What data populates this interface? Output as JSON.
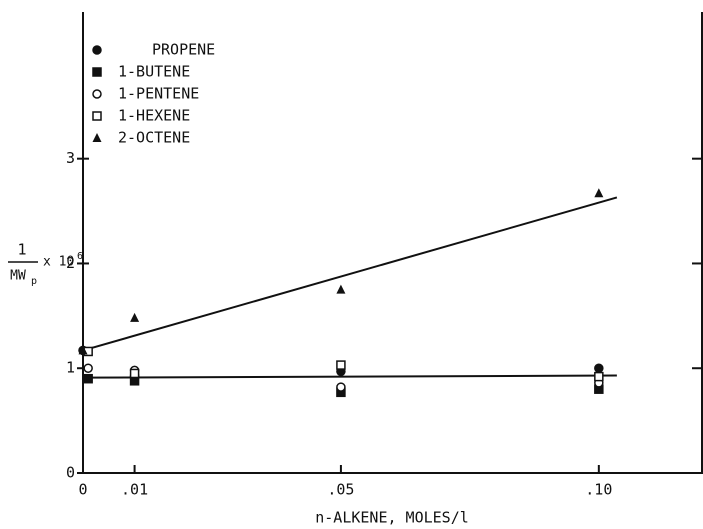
{
  "chart_data": {
    "type": "scatter",
    "x_label": "n-ALKENE, MOLES/l",
    "y_label": {
      "numerator": "1",
      "denominator": "MW",
      "subscript": "p",
      "multiplier": "x 10",
      "exponent": "6"
    },
    "xlim": [
      0,
      0.12
    ],
    "ylim": [
      0,
      4.4
    ],
    "xticks": [
      {
        "value": 0,
        "label": "0"
      },
      {
        "value": 0.01,
        "label": ".01"
      },
      {
        "value": 0.05,
        "label": ".05"
      },
      {
        "value": 0.1,
        "label": ".10"
      }
    ],
    "yticks": [
      0,
      1,
      2,
      3
    ],
    "series": [
      {
        "name": "PROPENE",
        "marker": "circle-filled",
        "x": [
          0,
          0.01,
          0.05,
          0.1
        ],
        "values": [
          1.17,
          0.93,
          0.97,
          1.0
        ]
      },
      {
        "name": "1-BUTENE",
        "marker": "square-filled",
        "x": [
          0.001,
          0.01,
          0.05,
          0.1
        ],
        "values": [
          0.9,
          0.88,
          0.77,
          0.8
        ]
      },
      {
        "name": "1-PENTENE",
        "marker": "circle-open",
        "x": [
          0.001,
          0.01,
          0.05,
          0.1
        ],
        "values": [
          1.0,
          0.98,
          0.82,
          0.86
        ]
      },
      {
        "name": "1-HEXENE",
        "marker": "square-open",
        "x": [
          0.001,
          0.01,
          0.05,
          0.1
        ],
        "values": [
          1.16,
          0.95,
          1.03,
          0.92
        ]
      },
      {
        "name": "2-OCTENE",
        "marker": "triangle-filled",
        "x": [
          0,
          0.01,
          0.05,
          0.1
        ],
        "values": [
          1.17,
          1.48,
          1.75,
          2.67
        ]
      }
    ],
    "lines": [
      {
        "x": [
          0,
          0.1035
        ],
        "values": [
          1.17,
          2.63
        ]
      },
      {
        "x": [
          0,
          0.1035
        ],
        "values": [
          0.91,
          0.93
        ]
      }
    ]
  }
}
